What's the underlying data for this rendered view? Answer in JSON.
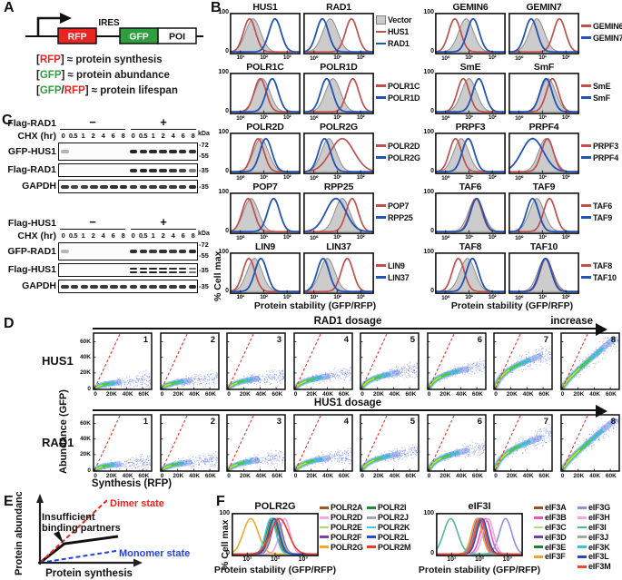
{
  "colors": {
    "red_curve": "#c0504d",
    "blue_curve": "#2353b5",
    "vector_fill": "#cccccc",
    "vector_stroke": "#8f8f8f",
    "rfp_red": "#e8251f",
    "gfp_green": "#2e9e3e",
    "dashed_red": "#e8332a",
    "band_dark": "#171717"
  },
  "panelA": {
    "label": "A",
    "construct": {
      "rfp": "RFP",
      "ires": "IRES",
      "gfp": "GFP",
      "poi": "POI"
    },
    "legend_lines": [
      {
        "segments": [
          {
            "text": "[",
            "color": "#1a1a1a"
          },
          {
            "text": "RFP",
            "color": "#e8251f"
          },
          {
            "text": "] ≈ protein synthesis",
            "color": "#1a1a1a"
          }
        ]
      },
      {
        "segments": [
          {
            "text": "[",
            "color": "#1a1a1a"
          },
          {
            "text": "GFP",
            "color": "#2e9e3e"
          },
          {
            "text": "] ≈ protein abundance",
            "color": "#1a1a1a"
          }
        ]
      },
      {
        "segments": [
          {
            "text": "[",
            "color": "#1a1a1a"
          },
          {
            "text": "GFP",
            "color": "#2e9e3e"
          },
          {
            "text": "/",
            "color": "#1a1a1a"
          },
          {
            "text": "RFP",
            "color": "#e8251f"
          },
          {
            "text": "] ≈ protein lifespan",
            "color": "#1a1a1a"
          }
        ]
      }
    ]
  },
  "panelB": {
    "label": "B",
    "ylabel": "% Cell max",
    "xlabel": "Protein stability (GFP/RFP)",
    "yticks": [
      "100",
      "0"
    ],
    "default_xticks": [
      "10⁰",
      "10¹",
      "10²"
    ],
    "rows": [
      {
        "groups": [
          {
            "plots": [
              {
                "t": "HUS1",
                "xt": [
                  "10¹",
                  "10²",
                  "10³"
                ],
                "g": 0.33,
                "r": 0.28,
                "b": 0.64
              },
              {
                "t": "RAD1",
                "g": 0.38,
                "r": 0.68,
                "b": 0.27
              }
            ],
            "legend": [
              {
                "label": "Vector",
                "swatch": "fill"
              },
              {
                "label": "HUS1",
                "swatch": "red"
              },
              {
                "label": "RAD1",
                "swatch": "blue"
              }
            ]
          },
          {
            "plots": [
              {
                "t": "GEMIN6",
                "g": 0.44,
                "r": 0.28,
                "b": 0.54
              },
              {
                "t": "GEMIN7",
                "g": 0.4,
                "r": 0.72,
                "b": 0.32
              }
            ],
            "legend": [
              {
                "label": "GEMIN6",
                "swatch": "red"
              },
              {
                "label": "GEMIN7",
                "swatch": "blue"
              }
            ]
          }
        ]
      },
      {
        "groups": [
          {
            "plots": [
              {
                "t": "POLR1C",
                "g": 0.46,
                "r": 0.43,
                "b": 0.6
              },
              {
                "t": "POLR1D",
                "g": 0.42,
                "r": 0.7,
                "b": 0.33
              }
            ],
            "legend": [
              {
                "label": "POLR1C",
                "swatch": "red"
              },
              {
                "label": "POLR1D",
                "swatch": "blue"
              }
            ]
          },
          {
            "plots": [
              {
                "t": "SmE",
                "g": 0.48,
                "r": 0.4,
                "b": 0.62
              },
              {
                "t": "SmF",
                "g": 0.56,
                "r": 0.62,
                "b": 0.53
              }
            ],
            "legend": [
              {
                "label": "SmE",
                "swatch": "red"
              },
              {
                "label": "SmF",
                "swatch": "blue"
              }
            ]
          }
        ]
      },
      {
        "groups": [
          {
            "plots": [
              {
                "t": "POLR2D",
                "g": 0.44,
                "r": 0.4,
                "b": 0.51
              },
              {
                "t": "POLR2G",
                "g": 0.36,
                "r": 0.55,
                "b": 0.3,
                "rw": 13
              }
            ],
            "legend": [
              {
                "label": "POLR2D",
                "swatch": "red"
              },
              {
                "label": "POLR2G",
                "swatch": "blue"
              }
            ]
          },
          {
            "plots": [
              {
                "t": "PRPF3",
                "g": 0.37,
                "r": 0.29,
                "b": 0.47
              },
              {
                "t": "PRPF4",
                "g": 0.53,
                "r": 0.55,
                "b": 0.34,
                "bw": 12
              }
            ],
            "legend": [
              {
                "label": "PRPF3",
                "swatch": "red"
              },
              {
                "label": "PRPF4",
                "swatch": "blue"
              }
            ]
          }
        ]
      },
      {
        "groups": [
          {
            "plots": [
              {
                "t": "POP7",
                "g": 0.3,
                "r": 0.26,
                "b": 0.62
              },
              {
                "t": "RPP25",
                "g": 0.55,
                "r": 0.69,
                "b": 0.46,
                "bw": 11
              }
            ],
            "legend": [
              {
                "label": "POP7",
                "swatch": "red"
              },
              {
                "label": "RPP25",
                "swatch": "blue"
              }
            ]
          },
          {
            "plots": [
              {
                "t": "TAF6",
                "g": 0.58,
                "r": 0.58,
                "b": 0.59
              },
              {
                "t": "TAF9",
                "g": 0.4,
                "r": 0.58,
                "b": 0.34
              }
            ],
            "legend": [
              {
                "label": "TAF6",
                "swatch": "red"
              },
              {
                "label": "TAF9",
                "swatch": "blue"
              }
            ]
          }
        ]
      },
      {
        "groups": [
          {
            "plots": [
              {
                "t": "LIN9",
                "xt": [
                  "10¹",
                  "10²",
                  "10³"
                ],
                "g": 0.35,
                "r": 0.27,
                "b": 0.44
              },
              {
                "t": "LIN37",
                "xt": [
                  "10¹",
                  "10²",
                  "10³"
                ],
                "g": 0.34,
                "r": 0.62,
                "b": 0.28
              }
            ],
            "legend": [
              {
                "label": "LIN9",
                "swatch": "red"
              },
              {
                "label": "LIN37",
                "swatch": "blue"
              }
            ]
          },
          {
            "plots": [
              {
                "t": "TAF8",
                "g": 0.46,
                "r": 0.33,
                "b": 0.53
              },
              {
                "t": "TAF10",
                "g": 0.52,
                "r": 0.53,
                "b": 0.52
              }
            ],
            "legend": [
              {
                "label": "TAF8",
                "swatch": "red"
              },
              {
                "label": "TAF10",
                "swatch": "blue"
              }
            ]
          }
        ]
      }
    ]
  },
  "panelC": {
    "label": "C",
    "kda_label": "kDa",
    "chx_label": "CHX (hr)",
    "minus": "−",
    "plus": "+",
    "timepoints": [
      "0",
      "0.5",
      "1",
      "2",
      "4",
      "6",
      "8"
    ],
    "groups": [
      {
        "condition_label": "Flag-RAD1",
        "blots": [
          {
            "label": "GFP-HUS1",
            "kda": [
              "72",
              "55"
            ],
            "tall": true,
            "minus": [
              0.3,
              0,
              0,
              0,
              0,
              0,
              0
            ],
            "plus": [
              0.95,
              0.9,
              0.92,
              0.9,
              0.92,
              0.9,
              0.88
            ]
          },
          {
            "label": "Flag-RAD1",
            "kda": [
              "35"
            ],
            "minus": [
              0,
              0,
              0,
              0,
              0,
              0,
              0
            ],
            "plus": [
              0.9,
              0.92,
              0.9,
              0.88,
              0.85,
              0.8,
              0.55
            ]
          },
          {
            "label": "GAPDH",
            "kda": [
              "35"
            ],
            "minus": [
              0.85,
              0.8,
              0.82,
              0.85,
              0.85,
              0.9,
              0.9
            ],
            "plus": [
              0.85,
              0.85,
              0.85,
              0.85,
              0.85,
              0.85,
              0.9
            ]
          }
        ]
      },
      {
        "condition_label": "Flag-HUS1",
        "blots": [
          {
            "label": "GFP-RAD1",
            "kda": [
              "72",
              "55"
            ],
            "tall": true,
            "minus": [
              0.3,
              0,
              0,
              0,
              0,
              0,
              0
            ],
            "plus": [
              0.9,
              0.88,
              0.85,
              0.9,
              0.85,
              0.88,
              0.92
            ]
          },
          {
            "label": "Flag-HUS1",
            "kda": [
              "35"
            ],
            "double": true,
            "minus": [
              0,
              0,
              0,
              0,
              0,
              0,
              0
            ],
            "plus": [
              0.95,
              0.95,
              0.95,
              0.95,
              0.9,
              0.9,
              0.6
            ]
          },
          {
            "label": "GAPDH",
            "kda": [
              "35"
            ],
            "minus": [
              0.85,
              0.85,
              0.85,
              0.85,
              0.85,
              0.85,
              0.85
            ],
            "plus": [
              0.85,
              0.85,
              0.85,
              0.85,
              0.85,
              0.85,
              0.9
            ]
          }
        ]
      }
    ]
  },
  "panelD": {
    "label": "D",
    "ylabel": "Abundance (GFP)",
    "xlabel": "Synthesis (RFP)",
    "xticks": [
      "0",
      "20K",
      "40K",
      "60K"
    ],
    "yticks": [
      "0",
      "20K",
      "40K",
      "60K"
    ],
    "rows": [
      {
        "row_label": "HUS1",
        "dosage_label": "RAD1 dosage",
        "increase_label": "increase",
        "panels": [
          {
            "num": "1",
            "P": 0.12,
            "m": 0.05,
            "ext": 0.45
          },
          {
            "num": "2",
            "P": 0.14,
            "m": 0.07,
            "ext": 0.5
          },
          {
            "num": "3",
            "P": 0.17,
            "m": 0.09,
            "ext": 0.55
          },
          {
            "num": "4",
            "P": 0.2,
            "m": 0.11,
            "ext": 0.6
          },
          {
            "num": "5",
            "P": 0.25,
            "m": 0.14,
            "ext": 0.65
          },
          {
            "num": "6",
            "P": 0.3,
            "m": 0.17,
            "ext": 0.7
          },
          {
            "num": "7",
            "P": 0.42,
            "m": 0.3,
            "ext": 0.8
          },
          {
            "num": "8",
            "P": 0.15,
            "m": 0.85,
            "ext": 0.92
          }
        ]
      },
      {
        "row_label": "RAD1",
        "dosage_label": "HUS1 dosage",
        "increase_label": "",
        "panels": [
          {
            "num": "1",
            "P": 0.12,
            "m": 0.05,
            "ext": 0.45
          },
          {
            "num": "2",
            "P": 0.14,
            "m": 0.07,
            "ext": 0.5
          },
          {
            "num": "3",
            "P": 0.17,
            "m": 0.09,
            "ext": 0.55
          },
          {
            "num": "4",
            "P": 0.2,
            "m": 0.11,
            "ext": 0.6
          },
          {
            "num": "5",
            "P": 0.25,
            "m": 0.14,
            "ext": 0.65
          },
          {
            "num": "6",
            "P": 0.3,
            "m": 0.17,
            "ext": 0.7
          },
          {
            "num": "7",
            "P": 0.42,
            "m": 0.3,
            "ext": 0.8
          },
          {
            "num": "8",
            "P": 0.15,
            "m": 0.85,
            "ext": 0.92
          }
        ]
      }
    ]
  },
  "panelE": {
    "label": "E",
    "ylabel": "Protein abundance",
    "xlabel": "Protein synthesis",
    "dimer_label": "Dimer state",
    "monomer_label": "Monomer state",
    "annotation_line1": "Insufficient",
    "annotation_line2": "binding partners",
    "dimer_color": "#e8251f",
    "monomer_color": "#2442e0"
  },
  "panelF": {
    "label": "F",
    "ylabel": "% Cell max",
    "yticks": [
      "100",
      "0"
    ],
    "xticks": [
      "10¹",
      "10²",
      "10³"
    ],
    "xlabel": "Protein stability (GFP/RFP)",
    "plots": [
      {
        "title": "POLR2G",
        "col_split": 5,
        "series": [
          {
            "label": "POLR2A",
            "color": "#9a5b22",
            "peak": 0.46
          },
          {
            "label": "POLR2D",
            "color": "#f2a6e8",
            "peak": 0.61
          },
          {
            "label": "POLR2E",
            "color": "#a8d878",
            "peak": 0.5
          },
          {
            "label": "POLR2F",
            "color": "#7d3fa5",
            "peak": 0.52
          },
          {
            "label": "POLR2G",
            "color": "#efa92f",
            "peak": 0.22,
            "w": 0.085
          },
          {
            "label": "POLR2I",
            "color": "#1f8c33",
            "peak": 0.48
          },
          {
            "label": "POLR2J",
            "color": "#a6a6a6",
            "peak": 0.51
          },
          {
            "label": "POLR2K",
            "color": "#3fc8e0",
            "peak": 0.45
          },
          {
            "label": "POLR2L",
            "color": "#2a52c0",
            "peak": 0.49
          },
          {
            "label": "POLR2M",
            "color": "#ee3b28",
            "peak": 0.55,
            "w": 0.1
          }
        ]
      },
      {
        "title": "eIF3I",
        "col_split": 6,
        "series": [
          {
            "label": "eIF3A",
            "color": "#8c5a20",
            "peak": 0.5
          },
          {
            "label": "eIF3B",
            "color": "#ef53c8",
            "peak": 0.57
          },
          {
            "label": "eIF3C",
            "color": "#b5d983",
            "peak": 0.52
          },
          {
            "label": "eIF3D",
            "color": "#7d3fa5",
            "peak": 0.49
          },
          {
            "label": "eIF3E",
            "color": "#1f7f33",
            "peak": 0.51
          },
          {
            "label": "eIF3F",
            "color": "#eaa52f",
            "peak": 0.47
          },
          {
            "label": "eIF3G",
            "color": "#8b93e0",
            "peak": 0.8,
            "w": 0.07
          },
          {
            "label": "eIF3H",
            "color": "#f6a6dd",
            "peak": 0.6
          },
          {
            "label": "eIF3I",
            "color": "#53b99b",
            "peak": 0.17,
            "w": 0.08
          },
          {
            "label": "eIF3J",
            "color": "#a6a6a6",
            "peak": 0.5
          },
          {
            "label": "eIF3K",
            "color": "#36c5d6",
            "peak": 0.52
          },
          {
            "label": "eIF3L",
            "color": "#2547c2",
            "peak": 0.53
          },
          {
            "label": "eIF3M",
            "color": "#f1472f",
            "peak": 0.51
          }
        ]
      }
    ]
  }
}
